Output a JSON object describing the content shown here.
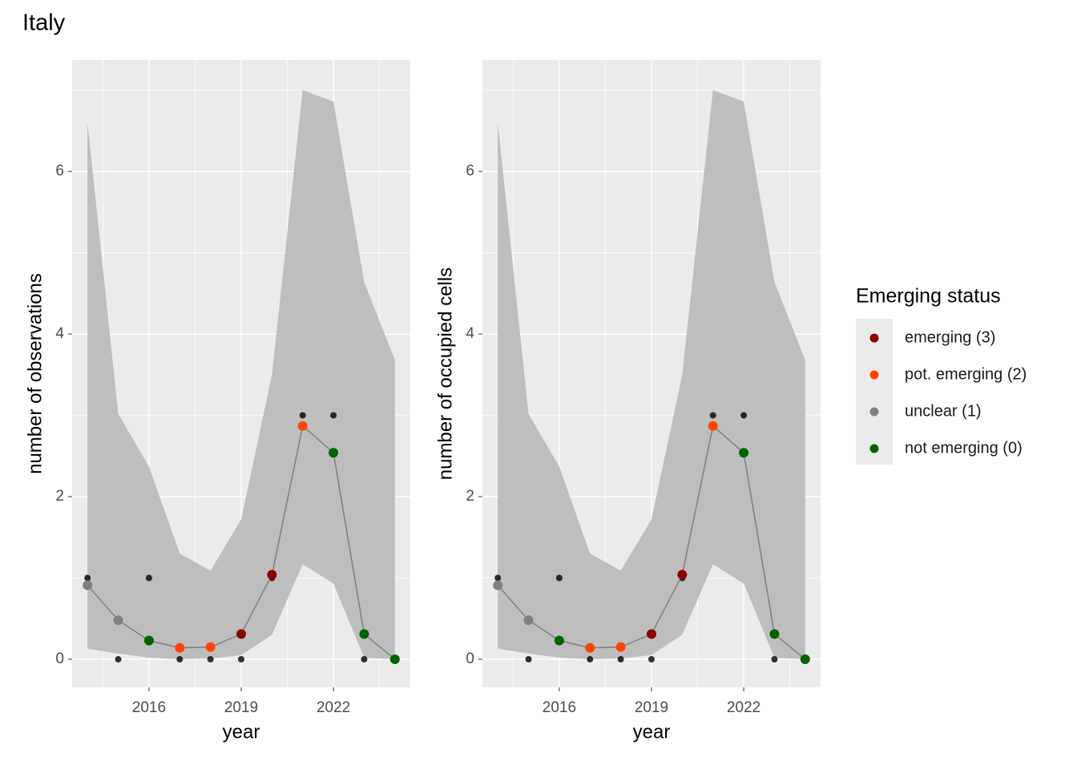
{
  "title": "Italy",
  "legend": {
    "title": "Emerging status",
    "items": [
      {
        "name": "emerging (3)",
        "color": "#8b0000"
      },
      {
        "name": "pot. emerging (2)",
        "color": "#ff4500"
      },
      {
        "name": "unclear (1)",
        "color": "#808080"
      },
      {
        "name": "not emerging (0)",
        "color": "#006400"
      }
    ]
  },
  "chart_data": [
    {
      "type": "line",
      "xlabel": "year",
      "ylabel": "number of observations",
      "x": [
        2014,
        2015,
        2016,
        2017,
        2018,
        2019,
        2020,
        2021,
        2022,
        2023,
        2024
      ],
      "xlim": [
        2013.5,
        2024.5
      ],
      "xticks": [
        2016,
        2019,
        2022
      ],
      "ylim": [
        -0.345,
        7.37
      ],
      "yticks": [
        0,
        2,
        4,
        6
      ],
      "grid": true,
      "observed": {
        "color": "#000000",
        "values": [
          1,
          0,
          1,
          0,
          0,
          0,
          1,
          3,
          3,
          0,
          0
        ]
      },
      "fitted": {
        "color": "#808080",
        "values": [
          0.91,
          0.48,
          0.23,
          0.14,
          0.15,
          0.31,
          1.04,
          2.87,
          2.54,
          0.31,
          0
        ],
        "status": [
          "unclear (1)",
          "unclear (1)",
          "not emerging (0)",
          "pot. emerging (2)",
          "pot. emerging (2)",
          "emerging (3)",
          "emerging (3)",
          "pot. emerging (2)",
          "not emerging (0)",
          "not emerging (0)",
          "not emerging (0)"
        ]
      },
      "band": {
        "color": "#bebebe",
        "upper": [
          6.6,
          3.02,
          2.37,
          1.3,
          1.09,
          1.72,
          3.5,
          7.0,
          6.86,
          4.64,
          3.68
        ],
        "lower": [
          0.13,
          0.07,
          0.02,
          0,
          0.01,
          0.05,
          0.3,
          1.17,
          0.93,
          0.02,
          0
        ]
      }
    },
    {
      "type": "line",
      "xlabel": "year",
      "ylabel": "number of occupied cells",
      "x": [
        2014,
        2015,
        2016,
        2017,
        2018,
        2019,
        2020,
        2021,
        2022,
        2023,
        2024
      ],
      "xlim": [
        2013.5,
        2024.5
      ],
      "xticks": [
        2016,
        2019,
        2022
      ],
      "ylim": [
        -0.345,
        7.37
      ],
      "yticks": [
        0,
        2,
        4,
        6
      ],
      "grid": true,
      "observed": {
        "color": "#000000",
        "values": [
          1,
          0,
          1,
          0,
          0,
          0,
          1,
          3,
          3,
          0,
          0
        ]
      },
      "fitted": {
        "color": "#808080",
        "values": [
          0.91,
          0.48,
          0.23,
          0.14,
          0.15,
          0.31,
          1.04,
          2.87,
          2.54,
          0.31,
          0
        ],
        "status": [
          "unclear (1)",
          "unclear (1)",
          "not emerging (0)",
          "pot. emerging (2)",
          "pot. emerging (2)",
          "emerging (3)",
          "emerging (3)",
          "pot. emerging (2)",
          "not emerging (0)",
          "not emerging (0)",
          "not emerging (0)"
        ]
      },
      "band": {
        "color": "#bebebe",
        "upper": [
          6.6,
          3.02,
          2.37,
          1.3,
          1.09,
          1.72,
          3.5,
          7.0,
          6.86,
          4.64,
          3.68
        ],
        "lower": [
          0.13,
          0.07,
          0.02,
          0,
          0.01,
          0.05,
          0.3,
          1.17,
          0.93,
          0.02,
          0
        ]
      }
    }
  ]
}
